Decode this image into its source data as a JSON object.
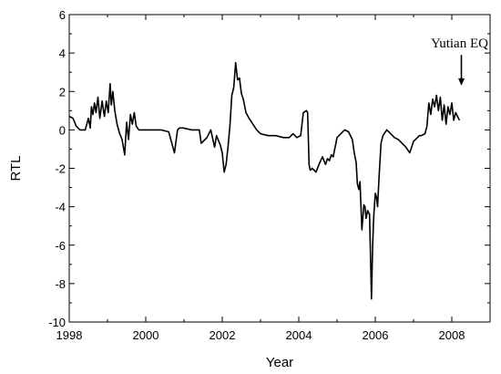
{
  "chart_data": {
    "type": "line",
    "title": "",
    "xlabel": "Year",
    "ylabel": "RTL",
    "xlim": [
      1998,
      2009
    ],
    "ylim": [
      -10,
      6
    ],
    "x_ticks": [
      1998,
      2000,
      2002,
      2004,
      2006,
      2008
    ],
    "x_tick_labels": [
      "1998",
      "2000",
      "2002",
      "2004",
      "2006",
      "2008"
    ],
    "y_ticks": [
      -10,
      -8,
      -6,
      -4,
      -2,
      0,
      2,
      4,
      6
    ],
    "y_tick_labels": [
      "-10",
      "-8",
      "-6",
      "-4",
      "-2",
      "0",
      "2",
      "4",
      "6"
    ],
    "grid": false,
    "color": "#000000",
    "annotation": {
      "text": "Yutian EQ",
      "x": 2008.25,
      "arrow_from_y": 3.9,
      "arrow_to_y": 2.3
    },
    "series": [
      {
        "x": [
          1998.0,
          1998.1,
          1998.18,
          1998.28,
          1998.42,
          1998.5,
          1998.55,
          1998.58,
          1998.62,
          1998.66,
          1998.7,
          1998.75,
          1998.8,
          1998.86,
          1998.92,
          1998.97,
          1999.02,
          1999.07,
          1999.1,
          1999.14,
          1999.19,
          1999.25,
          1999.32,
          1999.38,
          1999.45,
          1999.5,
          1999.55,
          1999.6,
          1999.65,
          1999.7,
          1999.75,
          1999.82,
          1999.9,
          2000.0,
          2000.2,
          2000.4,
          2000.6,
          2000.75,
          2000.83,
          2000.88,
          2000.92,
          2000.98,
          2001.2,
          2001.4,
          2001.45,
          2001.5,
          2001.6,
          2001.7,
          2001.8,
          2001.85,
          2001.95,
          2002.0,
          2002.05,
          2002.1,
          2002.15,
          2002.2,
          2002.25,
          2002.3,
          2002.35,
          2002.4,
          2002.45,
          2002.5,
          2002.55,
          2002.62,
          2002.7,
          2002.8,
          2002.9,
          2003.0,
          2003.2,
          2003.4,
          2003.6,
          2003.75,
          2003.85,
          2003.95,
          2004.05,
          2004.12,
          2004.2,
          2004.23,
          2004.27,
          2004.3,
          2004.35,
          2004.45,
          2004.55,
          2004.62,
          2004.7,
          2004.75,
          2004.8,
          2004.85,
          2004.9,
          2004.95,
          2005.0,
          2005.1,
          2005.2,
          2005.3,
          2005.4,
          2005.45,
          2005.5,
          2005.53,
          2005.57,
          2005.6,
          2005.65,
          2005.7,
          2005.73,
          2005.76,
          2005.8,
          2005.85,
          2005.9,
          2005.93,
          2005.96,
          2006.0,
          2006.03,
          2006.06,
          2006.1,
          2006.15,
          2006.2,
          2006.3,
          2006.4,
          2006.5,
          2006.6,
          2006.7,
          2006.8,
          2006.9,
          2007.0,
          2007.05,
          2007.15,
          2007.2,
          2007.3,
          2007.35,
          2007.4,
          2007.45,
          2007.5,
          2007.55,
          2007.6,
          2007.65,
          2007.7,
          2007.75,
          2007.8,
          2007.85,
          2007.9,
          2007.95,
          2008.0,
          2008.05,
          2008.1,
          2008.15,
          2008.2
        ],
        "y": [
          0.7,
          0.6,
          0.2,
          0.0,
          0.0,
          0.6,
          0.1,
          1.2,
          0.8,
          1.4,
          0.9,
          1.7,
          0.6,
          1.5,
          0.7,
          1.5,
          0.9,
          2.4,
          1.3,
          2.0,
          1.0,
          0.3,
          -0.2,
          -0.5,
          -1.3,
          0.4,
          -0.5,
          0.8,
          0.3,
          0.9,
          0.2,
          0.0,
          0.0,
          0.0,
          0.0,
          0.0,
          -0.1,
          -1.2,
          0.0,
          0.1,
          0.1,
          0.1,
          0.0,
          0.0,
          -0.7,
          -0.6,
          -0.4,
          0.0,
          -0.9,
          -0.3,
          -0.8,
          -1.2,
          -2.2,
          -1.8,
          -0.9,
          0.2,
          1.8,
          2.2,
          3.5,
          2.6,
          2.7,
          1.9,
          1.6,
          0.9,
          0.6,
          0.3,
          0.0,
          -0.2,
          -0.3,
          -0.3,
          -0.4,
          -0.4,
          -0.2,
          -0.4,
          -0.3,
          0.9,
          1.0,
          0.9,
          -1.8,
          -2.1,
          -2.0,
          -2.2,
          -1.7,
          -1.4,
          -1.8,
          -1.5,
          -1.6,
          -1.3,
          -1.4,
          -0.9,
          -0.4,
          -0.2,
          0.0,
          -0.1,
          -0.5,
          -1.2,
          -1.7,
          -2.8,
          -3.1,
          -2.7,
          -5.2,
          -3.9,
          -4.0,
          -4.6,
          -4.2,
          -4.4,
          -8.8,
          -6.0,
          -4.5,
          -3.3,
          -3.5,
          -4.0,
          -2.4,
          -0.7,
          -0.3,
          0.0,
          -0.2,
          -0.4,
          -0.5,
          -0.7,
          -0.9,
          -1.2,
          -0.6,
          -0.5,
          -0.3,
          -0.3,
          -0.2,
          0.2,
          1.4,
          0.8,
          1.6,
          1.2,
          1.8,
          1.0,
          1.7,
          0.5,
          1.3,
          0.3,
          1.2,
          0.8,
          1.4,
          0.5,
          0.9,
          0.7,
          0.5
        ]
      }
    ]
  }
}
